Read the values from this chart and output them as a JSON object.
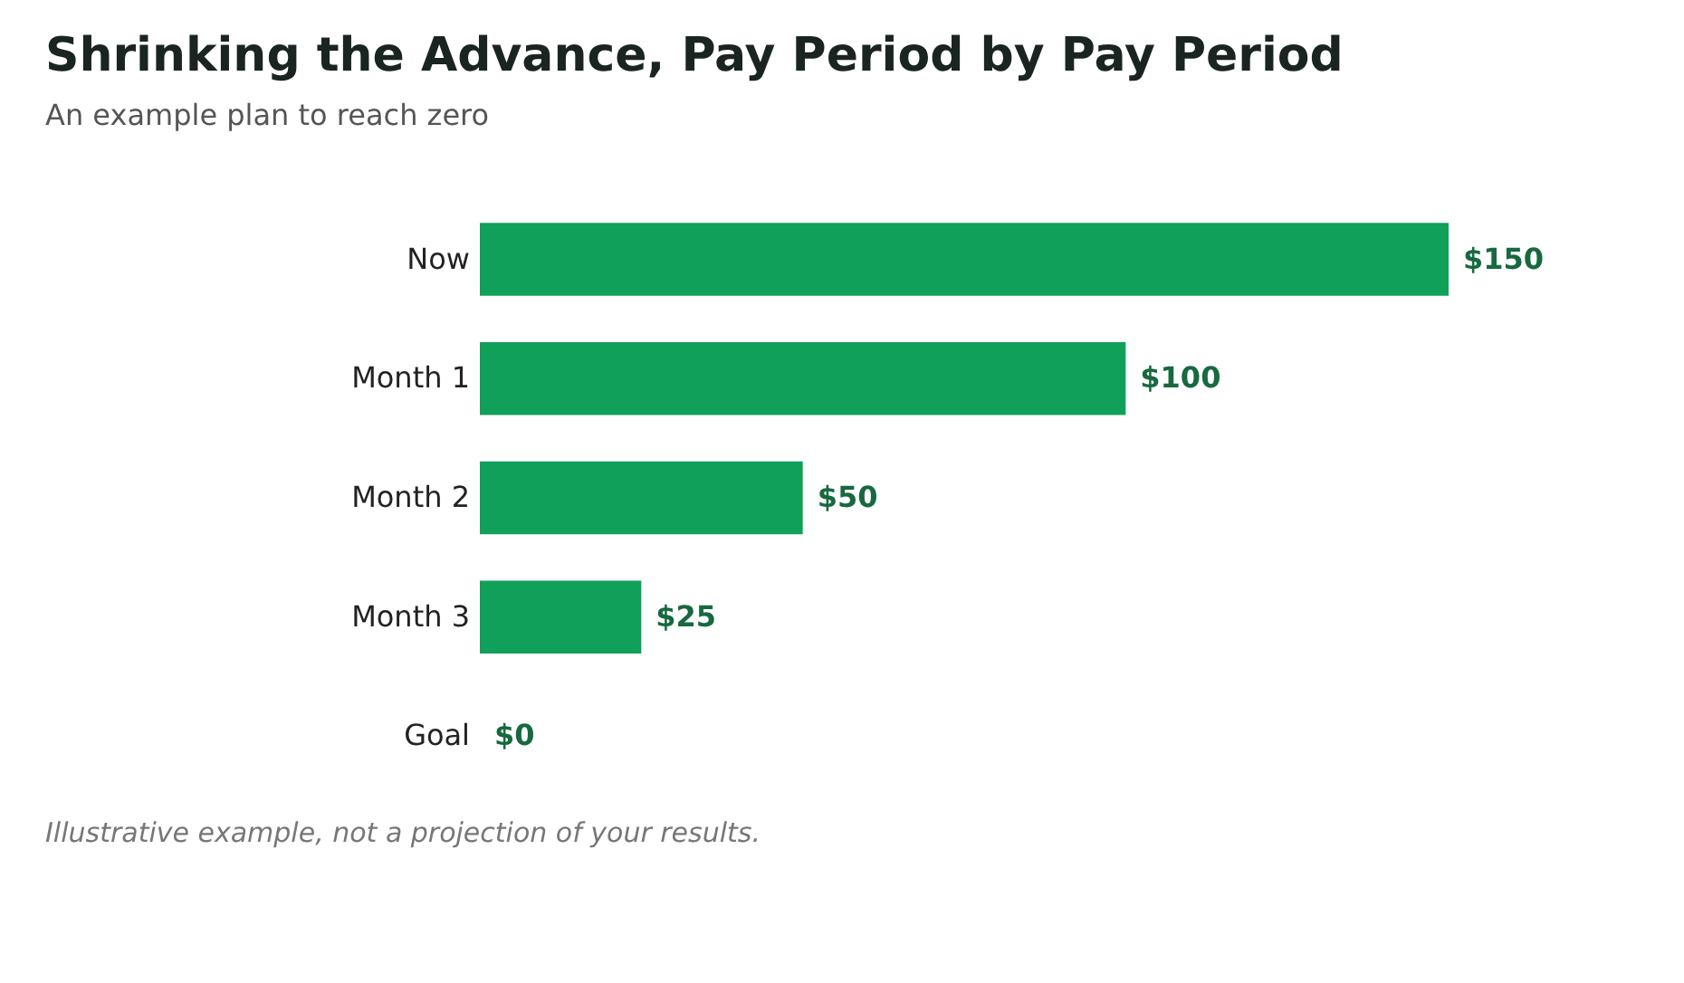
{
  "chart_data": {
    "type": "bar",
    "orientation": "horizontal",
    "title": "Shrinking the Advance, Pay Period by Pay Period",
    "subtitle": "An example plan to reach zero",
    "categories": [
      "Now",
      "Month 1",
      "Month 2",
      "Month 3",
      "Goal"
    ],
    "values": [
      150,
      100,
      50,
      25,
      0
    ],
    "color": "#10a05a",
    "value_labels": [
      "$150",
      "$100",
      "$50",
      "$25",
      "$0"
    ],
    "annotations": [
      "Illustrative example, not a projection of your results."
    ],
    "grid": false
  }
}
